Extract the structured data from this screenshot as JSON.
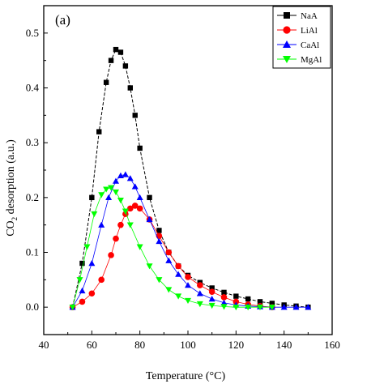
{
  "chart_data": {
    "type": "scatter",
    "panel_label": "(a)",
    "xlabel": "Temperature (°C)",
    "ylabel_parts": [
      "CO",
      "2",
      " desorption (a.u.)"
    ],
    "xlim": [
      40,
      160
    ],
    "ylim": [
      -0.05,
      0.55
    ],
    "xticks": [
      "40",
      "60",
      "80",
      "100",
      "120",
      "140",
      "160"
    ],
    "yticks": [
      "0.0",
      "0.1",
      "0.2",
      "0.3",
      "0.4",
      "0.5"
    ],
    "xtick_values": [
      40,
      60,
      80,
      100,
      120,
      140,
      160
    ],
    "ytick_values": [
      0.0,
      0.1,
      0.2,
      0.3,
      0.4,
      0.5
    ],
    "legend_position": "top-right",
    "series": [
      {
        "name": "NaA",
        "color": "#000000",
        "marker": "square",
        "line": true,
        "x": [
          52,
          56,
          60,
          63,
          66,
          68,
          70,
          72,
          74,
          76,
          78,
          80,
          84,
          88,
          92,
          96,
          100,
          105,
          110,
          115,
          120,
          125,
          130,
          135,
          140,
          145,
          150
        ],
        "y": [
          0.0,
          0.08,
          0.2,
          0.32,
          0.41,
          0.45,
          0.47,
          0.465,
          0.44,
          0.4,
          0.35,
          0.29,
          0.2,
          0.14,
          0.1,
          0.075,
          0.058,
          0.045,
          0.035,
          0.027,
          0.02,
          0.015,
          0.01,
          0.007,
          0.004,
          0.002,
          0.0
        ]
      },
      {
        "name": "LiAl",
        "color": "#ff0000",
        "marker": "circle",
        "line": false,
        "x": [
          52,
          56,
          60,
          64,
          68,
          70,
          72,
          74,
          76,
          78,
          80,
          84,
          88,
          92,
          96,
          100,
          105,
          110,
          115,
          120,
          125,
          130,
          135
        ],
        "y": [
          0.0,
          0.01,
          0.025,
          0.05,
          0.095,
          0.125,
          0.15,
          0.17,
          0.18,
          0.185,
          0.18,
          0.16,
          0.13,
          0.1,
          0.075,
          0.055,
          0.04,
          0.028,
          0.018,
          0.01,
          0.005,
          0.002,
          0.0
        ]
      },
      {
        "name": "CaAl",
        "color": "#0000ff",
        "marker": "triangle-up",
        "line": false,
        "x": [
          52,
          56,
          60,
          64,
          67,
          70,
          72,
          74,
          76,
          78,
          80,
          84,
          88,
          92,
          96,
          100,
          105,
          110,
          115,
          120,
          125,
          130,
          135,
          140,
          145,
          150
        ],
        "y": [
          0.0,
          0.03,
          0.08,
          0.15,
          0.2,
          0.23,
          0.24,
          0.242,
          0.235,
          0.22,
          0.2,
          0.16,
          0.12,
          0.085,
          0.06,
          0.04,
          0.025,
          0.015,
          0.008,
          0.004,
          0.002,
          0.001,
          0.0,
          0.0,
          0.0,
          0.0
        ]
      },
      {
        "name": "MgAl",
        "color": "#00ff00",
        "marker": "triangle-down",
        "line": false,
        "x": [
          52,
          55,
          58,
          61,
          64,
          66,
          68,
          70,
          72,
          74,
          76,
          80,
          84,
          88,
          92,
          96,
          100,
          105,
          110,
          115,
          120,
          125,
          130,
          135
        ],
        "y": [
          0.0,
          0.05,
          0.11,
          0.17,
          0.205,
          0.215,
          0.218,
          0.21,
          0.195,
          0.175,
          0.15,
          0.11,
          0.075,
          0.05,
          0.032,
          0.02,
          0.012,
          0.006,
          0.003,
          0.001,
          0.0,
          0.0,
          0.0,
          0.0
        ]
      }
    ]
  }
}
